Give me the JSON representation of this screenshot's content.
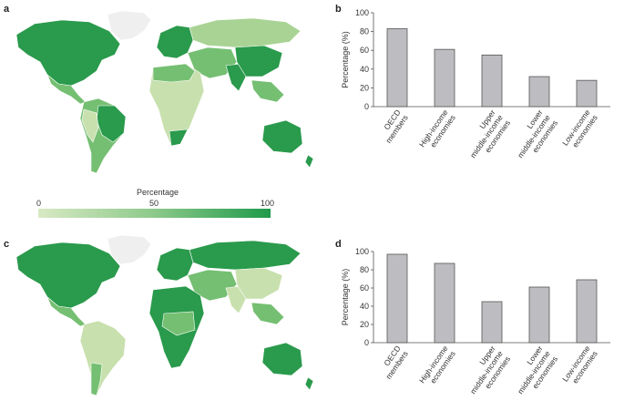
{
  "panels": {
    "a": "a",
    "b": "b",
    "c": "c",
    "d": "d"
  },
  "colorbar": {
    "title": "Percentage",
    "ticks": [
      "0",
      "50",
      "100"
    ],
    "low_color": "#d8e9c4",
    "high_color": "#1f9a4b"
  },
  "colors": {
    "bar_fill": "#bdbdc1",
    "bar_stroke": "#555555",
    "land_dark": "#2a9a4c",
    "land_mid": "#75bf72",
    "land_light": "#c8e0ae",
    "greenland": "#efefef"
  },
  "chart_data": [
    {
      "id": "b",
      "type": "bar",
      "categories": [
        [
          "OECD",
          "members"
        ],
        [
          "High-income",
          "economies"
        ],
        [
          "Upper",
          "middle-income",
          "economies"
        ],
        [
          "Lower",
          "middle-income",
          "economies"
        ],
        [
          "Low-income",
          "economies"
        ]
      ],
      "values": [
        83,
        61,
        55,
        32,
        28
      ],
      "ylabel": "Percentage (%)",
      "ylim": [
        0,
        100
      ],
      "yticks": [
        0,
        20,
        40,
        60,
        80,
        100
      ],
      "grid": false
    },
    {
      "id": "d",
      "type": "bar",
      "categories": [
        [
          "OECD",
          "members"
        ],
        [
          "High-income",
          "economies"
        ],
        [
          "Upper",
          "middle-income",
          "economies"
        ],
        [
          "Lower",
          "middle-income",
          "economies"
        ],
        [
          "Low-income",
          "economies"
        ]
      ],
      "values": [
        97,
        87,
        45,
        61,
        69
      ],
      "ylabel": "Percentage (%)",
      "ylim": [
        0,
        100
      ],
      "yticks": [
        0,
        20,
        40,
        60,
        80,
        100
      ],
      "grid": false
    }
  ]
}
